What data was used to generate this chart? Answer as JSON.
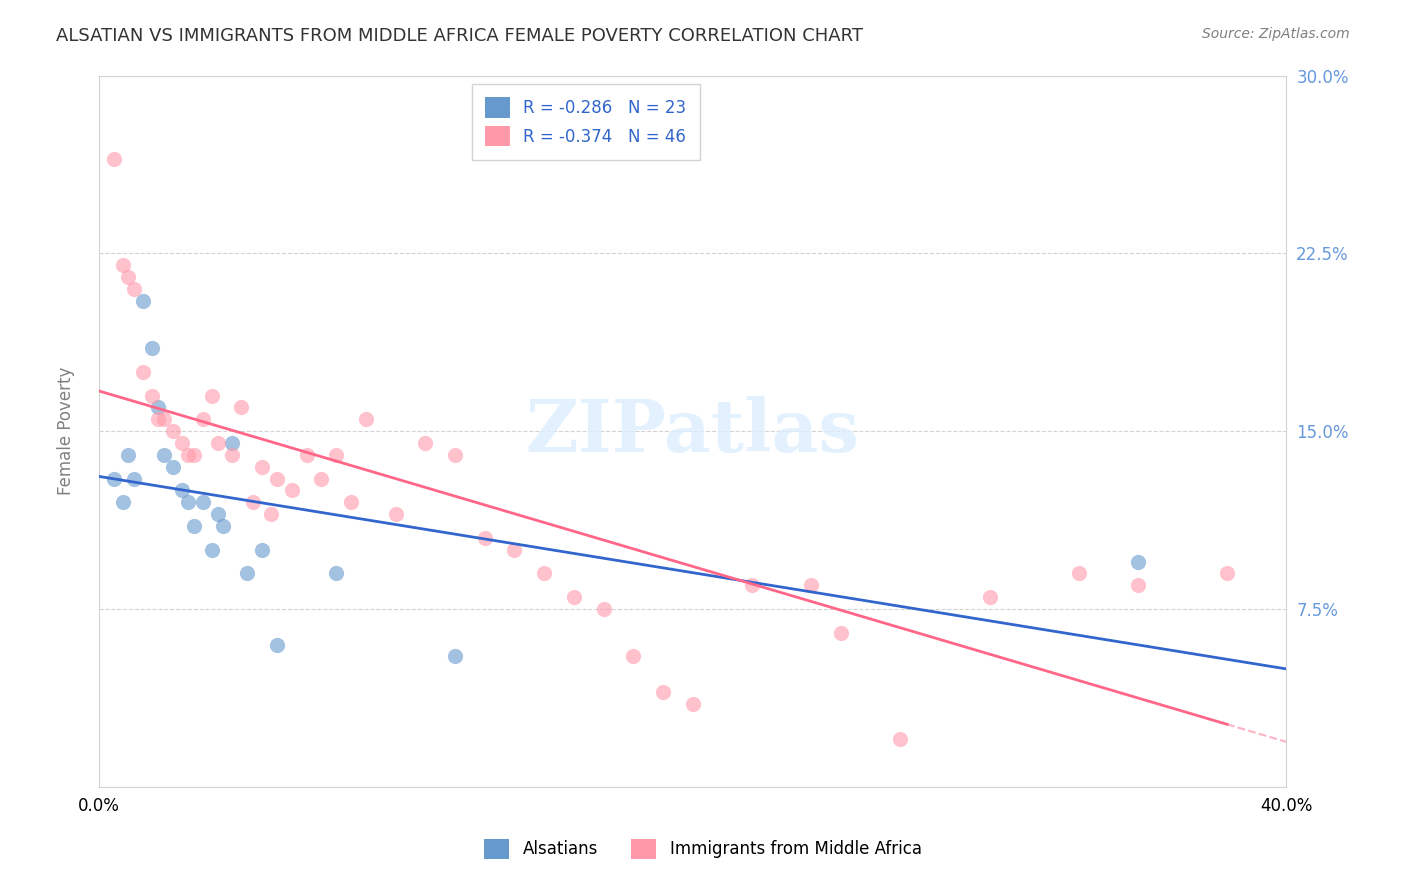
{
  "title": "ALSATIAN VS IMMIGRANTS FROM MIDDLE AFRICA FEMALE POVERTY CORRELATION CHART",
  "source": "Source: ZipAtlas.com",
  "xlabel_bottom": "",
  "ylabel": "Female Poverty",
  "xmin": 0.0,
  "xmax": 0.4,
  "ymin": 0.0,
  "ymax": 0.3,
  "yticks": [
    0.0,
    0.075,
    0.15,
    0.225,
    0.3
  ],
  "ytick_labels": [
    "",
    "7.5%",
    "15.0%",
    "22.5%",
    "30.0%"
  ],
  "xticks": [
    0.0,
    0.1,
    0.2,
    0.3,
    0.4
  ],
  "xtick_labels": [
    "0.0%",
    "",
    "",
    "",
    "40.0%"
  ],
  "legend_r1": "R = -0.286",
  "legend_n1": "N = 23",
  "legend_r2": "R = -0.374",
  "legend_n2": "N = 46",
  "legend_label1": "Alsatians",
  "legend_label2": "Immigrants from Middle Africa",
  "blue_color": "#6699CC",
  "pink_color": "#FF99AA",
  "blue_line_color": "#3366CC",
  "pink_line_color": "#FF6688",
  "watermark": "ZIPatlas",
  "alsatians_x": [
    0.005,
    0.008,
    0.01,
    0.012,
    0.015,
    0.018,
    0.02,
    0.022,
    0.025,
    0.028,
    0.03,
    0.032,
    0.035,
    0.038,
    0.04,
    0.042,
    0.045,
    0.05,
    0.055,
    0.06,
    0.08,
    0.12,
    0.35
  ],
  "alsatians_y": [
    0.13,
    0.12,
    0.14,
    0.13,
    0.205,
    0.185,
    0.16,
    0.14,
    0.135,
    0.125,
    0.12,
    0.11,
    0.12,
    0.1,
    0.115,
    0.11,
    0.145,
    0.09,
    0.1,
    0.06,
    0.09,
    0.055,
    0.095
  ],
  "immigrants_x": [
    0.005,
    0.008,
    0.01,
    0.012,
    0.015,
    0.018,
    0.02,
    0.022,
    0.025,
    0.028,
    0.03,
    0.032,
    0.035,
    0.038,
    0.04,
    0.045,
    0.048,
    0.052,
    0.055,
    0.058,
    0.06,
    0.065,
    0.07,
    0.075,
    0.08,
    0.085,
    0.09,
    0.1,
    0.11,
    0.12,
    0.13,
    0.14,
    0.15,
    0.16,
    0.17,
    0.18,
    0.19,
    0.2,
    0.22,
    0.24,
    0.25,
    0.27,
    0.3,
    0.33,
    0.35,
    0.38
  ],
  "immigrants_y": [
    0.265,
    0.22,
    0.215,
    0.21,
    0.175,
    0.165,
    0.155,
    0.155,
    0.15,
    0.145,
    0.14,
    0.14,
    0.155,
    0.165,
    0.145,
    0.14,
    0.16,
    0.12,
    0.135,
    0.115,
    0.13,
    0.125,
    0.14,
    0.13,
    0.14,
    0.12,
    0.155,
    0.115,
    0.145,
    0.14,
    0.105,
    0.1,
    0.09,
    0.08,
    0.075,
    0.055,
    0.04,
    0.035,
    0.085,
    0.085,
    0.065,
    0.02,
    0.08,
    0.09,
    0.085,
    0.09
  ]
}
